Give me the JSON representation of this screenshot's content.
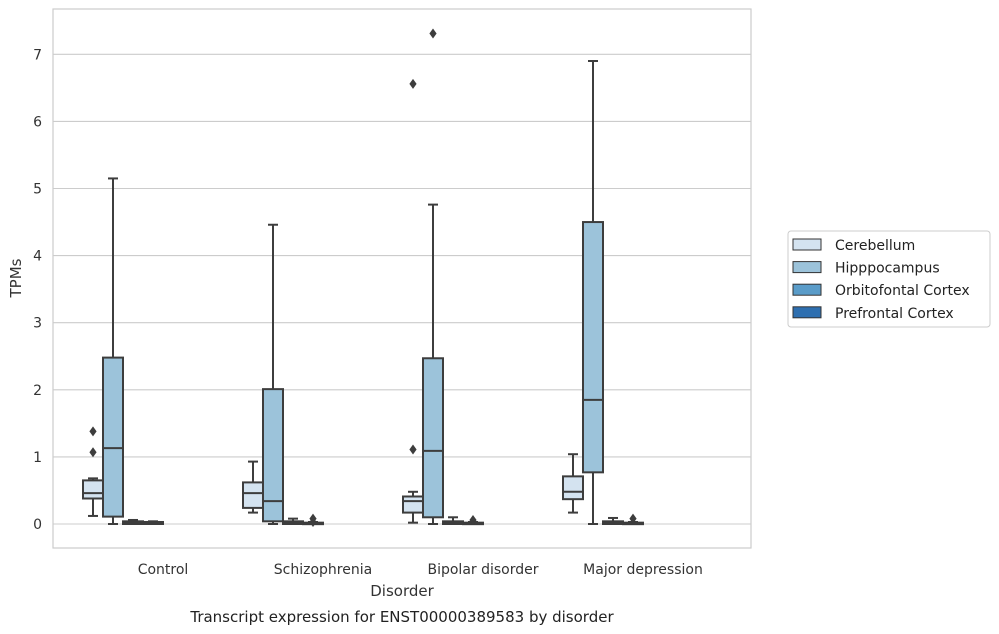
{
  "chart_data": {
    "type": "box",
    "caption": "Transcript expression for ENST00000389583 by disorder",
    "xlabel": "Disorder",
    "ylabel": "TPMs",
    "ylim": [
      -0.35,
      7.7
    ],
    "yticks": [
      0,
      1,
      2,
      3,
      4,
      5,
      6,
      7
    ],
    "grid": true,
    "legend_position": "right",
    "categories": [
      "Control",
      "Schizophrenia",
      "Bipolar disorder",
      "Major depression"
    ],
    "series": [
      {
        "name": "Cerebellum",
        "color": "#d4e3f0",
        "boxes": [
          {
            "whisker_low": 0.12,
            "q1": 0.38,
            "median": 0.46,
            "q3": 0.65,
            "whisker_high": 0.68,
            "outliers": [
              1.38,
              1.07
            ]
          },
          {
            "whisker_low": 0.17,
            "q1": 0.24,
            "median": 0.46,
            "q3": 0.62,
            "whisker_high": 0.93,
            "outliers": []
          },
          {
            "whisker_low": 0.02,
            "q1": 0.17,
            "median": 0.34,
            "q3": 0.41,
            "whisker_high": 0.48,
            "outliers": [
              6.56,
              1.11
            ]
          },
          {
            "whisker_low": 0.17,
            "q1": 0.37,
            "median": 0.48,
            "q3": 0.71,
            "whisker_high": 1.04,
            "outliers": []
          }
        ]
      },
      {
        "name": "Hipppocampus",
        "color": "#9cc3da",
        "boxes": [
          {
            "whisker_low": 0.0,
            "q1": 0.11,
            "median": 1.13,
            "q3": 2.48,
            "whisker_high": 5.15,
            "outliers": []
          },
          {
            "whisker_low": 0.0,
            "q1": 0.04,
            "median": 0.34,
            "q3": 2.01,
            "whisker_high": 4.46,
            "outliers": []
          },
          {
            "whisker_low": 0.0,
            "q1": 0.1,
            "median": 1.09,
            "q3": 2.47,
            "whisker_high": 4.76,
            "outliers": [
              7.31
            ]
          },
          {
            "whisker_low": 0.0,
            "q1": 0.77,
            "median": 1.85,
            "q3": 4.5,
            "whisker_high": 6.9,
            "outliers": []
          }
        ]
      },
      {
        "name": "Orbitofontal Cortex",
        "color": "#5a9cc9",
        "boxes": [
          {
            "whisker_low": 0.0,
            "q1": 0.0,
            "median": 0.02,
            "q3": 0.04,
            "whisker_high": 0.06,
            "outliers": []
          },
          {
            "whisker_low": 0.0,
            "q1": 0.0,
            "median": 0.02,
            "q3": 0.04,
            "whisker_high": 0.08,
            "outliers": []
          },
          {
            "whisker_low": 0.0,
            "q1": 0.0,
            "median": 0.02,
            "q3": 0.04,
            "whisker_high": 0.1,
            "outliers": []
          },
          {
            "whisker_low": 0.0,
            "q1": 0.0,
            "median": 0.02,
            "q3": 0.04,
            "whisker_high": 0.09,
            "outliers": []
          }
        ]
      },
      {
        "name": "Prefrontal Cortex",
        "color": "#2e6fb0",
        "boxes": [
          {
            "whisker_low": 0.0,
            "q1": 0.0,
            "median": 0.02,
            "q3": 0.03,
            "whisker_high": 0.04,
            "outliers": []
          },
          {
            "whisker_low": 0.0,
            "q1": 0.0,
            "median": 0.01,
            "q3": 0.02,
            "whisker_high": 0.03,
            "outliers": [
              0.08,
              0.03
            ]
          },
          {
            "whisker_low": 0.0,
            "q1": 0.0,
            "median": 0.01,
            "q3": 0.02,
            "whisker_high": 0.03,
            "outliers": [
              0.06
            ]
          },
          {
            "whisker_low": 0.0,
            "q1": 0.0,
            "median": 0.01,
            "q3": 0.02,
            "whisker_high": 0.03,
            "outliers": [
              0.08
            ]
          }
        ]
      }
    ]
  }
}
